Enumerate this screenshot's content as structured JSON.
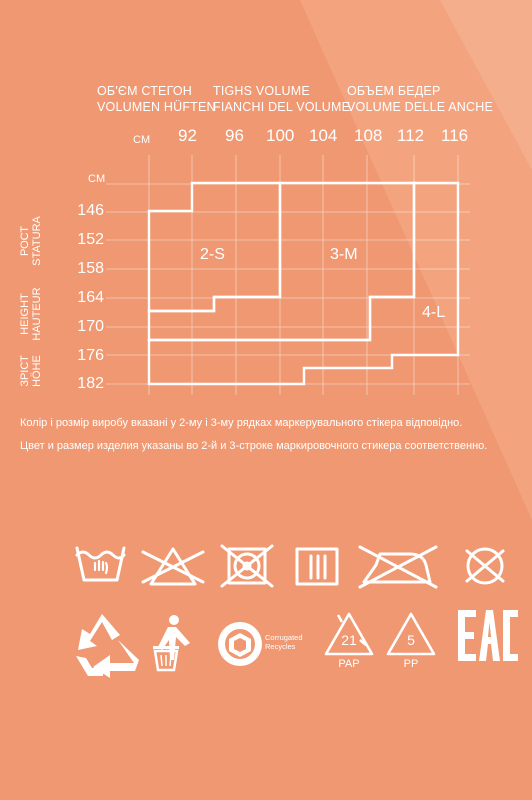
{
  "headers": {
    "col1_line1": "ОБ'ЄМ СТЕГОН",
    "col1_line2": "VOLUMEN HÜFTEN",
    "col2_line1": "TIGHS VOLUME",
    "col2_line2": "FIANCHI DEL VOLUME",
    "col3_line1": "ОБЪЕМ БЕДЕР",
    "col3_line2": "VOLUME DELLE ANCHE"
  },
  "unit_top": "CM",
  "unit_left": "CM",
  "columns": [
    "92",
    "96",
    "100",
    "104",
    "108",
    "112",
    "116"
  ],
  "rows": [
    "146",
    "152",
    "158",
    "164",
    "170",
    "176",
    "182"
  ],
  "height_labels": {
    "group1": [
      "РОСТ",
      "STATURA"
    ],
    "group2": [
      "HEIGHT",
      "HAUTEUR"
    ],
    "group3": [
      "ЗРІСТ",
      "HÖHE"
    ]
  },
  "sizes": {
    "s": "2-S",
    "m": "3-M",
    "l": "4-L"
  },
  "notes": {
    "ua": "Колір і розмір виробу вказані у 2-му і 3-му рядках маркерувального стікера відповідно.",
    "ru": "Цвет и размер изделия указаны во 2-й и 3-строке маркировочного стикера соответственно."
  },
  "icons": {
    "care": [
      "wash-30-icon",
      "do-not-bleach-icon",
      "do-not-tumble-dry-icon",
      "drip-dry-icon",
      "do-not-iron-icon",
      "do-not-dry-clean-icon"
    ],
    "eco": [
      "recycle-icon",
      "tidyman-icon",
      "corrugated-recycles-icon",
      "pap-21-icon",
      "pp-5-icon",
      "eac-icon"
    ]
  },
  "corrugated_text": [
    "Corrugated",
    "Recycles"
  ],
  "pap_code": "21",
  "pap_label": "PAP",
  "pp_code": "5",
  "pp_label": "PP",
  "eac_label": "EAC",
  "colors": {
    "background": "#ef9872",
    "foreground": "#ffffff"
  }
}
